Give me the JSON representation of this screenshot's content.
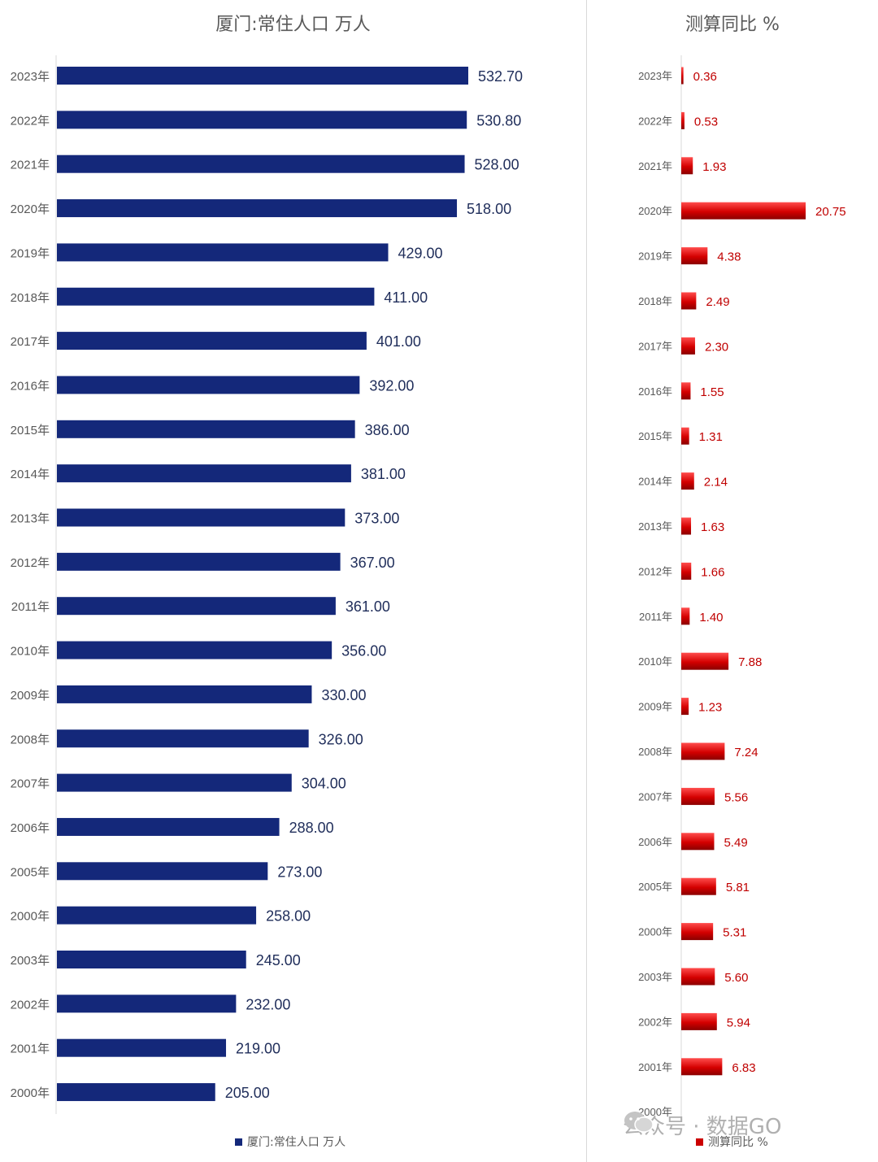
{
  "chart_data": [
    {
      "type": "bar",
      "orientation": "horizontal",
      "title": "厦门:常住人口 万人",
      "categories": [
        "2023年",
        "2022年",
        "2021年",
        "2020年",
        "2019年",
        "2018年",
        "2017年",
        "2016年",
        "2015年",
        "2014年",
        "2013年",
        "2012年",
        "2011年",
        "2010年",
        "2009年",
        "2008年",
        "2007年",
        "2006年",
        "2005年",
        "2000年",
        "2003年",
        "2002年",
        "2001年",
        "2000年"
      ],
      "series": [
        {
          "name": "厦门:常住人口 万人",
          "values": [
            532.7,
            530.8,
            528.0,
            518.0,
            429.0,
            411.0,
            401.0,
            392.0,
            386.0,
            381.0,
            373.0,
            367.0,
            361.0,
            356.0,
            330.0,
            326.0,
            304.0,
            288.0,
            273.0,
            258.0,
            245.0,
            232.0,
            219.0,
            205.0
          ],
          "labels": [
            "532.70",
            "530.80",
            "528.00",
            "518.00",
            "429.00",
            "411.00",
            "401.00",
            "392.00",
            "386.00",
            "381.00",
            "373.00",
            "367.00",
            "361.00",
            "356.00",
            "330.00",
            "326.00",
            "304.00",
            "288.00",
            "273.00",
            "258.00",
            "245.00",
            "232.00",
            "219.00",
            "205.00"
          ]
        }
      ],
      "xlim": [
        0,
        560
      ],
      "grid": false,
      "legend": "bottom",
      "color": "#14287a"
    },
    {
      "type": "bar",
      "orientation": "horizontal",
      "title": "测算同比 %",
      "categories": [
        "2023年",
        "2022年",
        "2021年",
        "2020年",
        "2019年",
        "2018年",
        "2017年",
        "2016年",
        "2015年",
        "2014年",
        "2013年",
        "2012年",
        "2011年",
        "2010年",
        "2009年",
        "2008年",
        "2007年",
        "2006年",
        "2005年",
        "2000年",
        "2003年",
        "2002年",
        "2001年",
        "2000年"
      ],
      "series": [
        {
          "name": "测算同比 %",
          "values": [
            0.36,
            0.53,
            1.93,
            20.75,
            4.38,
            2.49,
            2.3,
            1.55,
            1.31,
            2.14,
            1.63,
            1.66,
            1.4,
            7.88,
            1.23,
            7.24,
            5.56,
            5.49,
            5.81,
            5.31,
            5.6,
            5.94,
            6.83,
            null
          ],
          "labels": [
            "0.36",
            "0.53",
            "1.93",
            "20.75",
            "4.38",
            "2.49",
            "2.30",
            "1.55",
            "1.31",
            "2.14",
            "1.63",
            "1.66",
            "1.40",
            "7.88",
            "1.23",
            "7.24",
            "5.56",
            "5.49",
            "5.81",
            "5.31",
            "5.60",
            "5.94",
            "6.83",
            ""
          ]
        }
      ],
      "xlim": [
        0,
        28
      ],
      "grid": false,
      "legend": "bottom",
      "color": "#cc0000"
    }
  ],
  "watermark": "公众号 · 数据GO"
}
